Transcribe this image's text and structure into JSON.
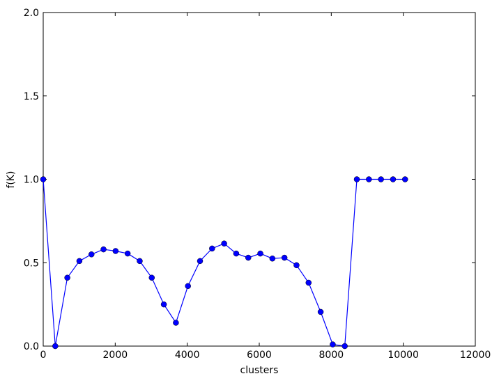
{
  "chart_data": {
    "type": "line",
    "xlabel": "clusters",
    "ylabel": "f(K)",
    "color": "#0000ff",
    "x": [
      0,
      335,
      670,
      1005,
      1340,
      1675,
      2010,
      2345,
      2680,
      3015,
      3350,
      3685,
      4020,
      4355,
      4690,
      5025,
      5360,
      5695,
      6030,
      6365,
      6700,
      7035,
      7370,
      7705,
      8040,
      8375,
      8710,
      9045,
      9380,
      9715,
      10050
    ],
    "values": [
      1.0,
      0.0,
      0.41,
      0.51,
      0.55,
      0.58,
      0.57,
      0.555,
      0.51,
      0.41,
      0.25,
      0.14,
      0.36,
      0.51,
      0.585,
      0.615,
      0.555,
      0.53,
      0.555,
      0.525,
      0.53,
      0.485,
      0.38,
      0.205,
      0.01,
      0.0,
      1.0,
      1.0,
      1.0,
      1.0,
      1.0
    ],
    "xlim": [
      0,
      12000
    ],
    "xticks": [
      0,
      2000,
      4000,
      6000,
      8000,
      10000,
      12000
    ],
    "ylim": [
      0,
      2
    ],
    "yticks": [
      {
        "value": 0,
        "label": "0.0"
      },
      {
        "value": 0.5,
        "label": "0.5"
      },
      {
        "value": 1,
        "label": "1.0"
      },
      {
        "value": 1.5,
        "label": "1.5"
      },
      {
        "value": 2,
        "label": "2.0"
      }
    ]
  }
}
